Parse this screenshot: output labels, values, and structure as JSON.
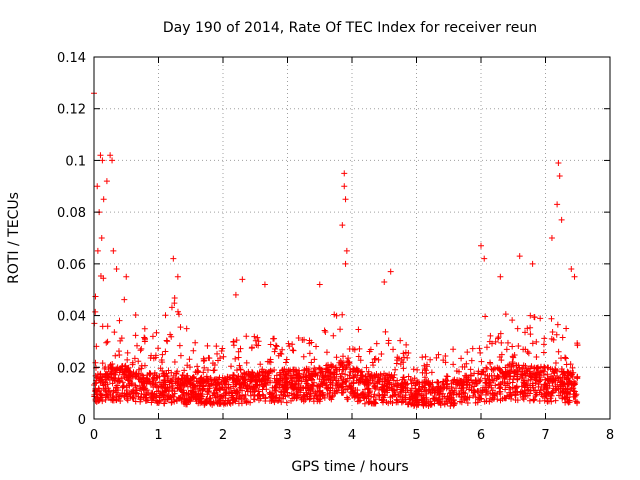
{
  "chart_data": {
    "type": "scatter",
    "title": "Day 190 of 2014, Rate Of TEC Index for receiver reun",
    "xlabel": "GPS time / hours",
    "ylabel": "ROTI / TECUs",
    "xlim": [
      0,
      8
    ],
    "ylim": [
      0,
      0.14
    ],
    "xticks": [
      0,
      1,
      2,
      3,
      4,
      5,
      6,
      7,
      8
    ],
    "xtick_labels": [
      "0",
      "1",
      "2",
      "3",
      "4",
      "5",
      "6",
      "7",
      "8"
    ],
    "yticks": [
      0,
      0.02,
      0.04,
      0.06,
      0.08,
      0.1,
      0.12,
      0.14
    ],
    "ytick_labels": [
      "0",
      "0.02",
      "0.04",
      "0.06",
      "0.08",
      "0.1",
      "0.12",
      "0.14"
    ],
    "grid": true,
    "marker": "plus",
    "color": "#ff0000",
    "x_extent": [
      0,
      7.5
    ],
    "notable_points": [
      {
        "x": 0.0,
        "y": 0.126
      },
      {
        "x": 0.1,
        "y": 0.102
      },
      {
        "x": 0.13,
        "y": 0.1
      },
      {
        "x": 0.25,
        "y": 0.102
      },
      {
        "x": 0.28,
        "y": 0.1
      },
      {
        "x": 0.2,
        "y": 0.092
      },
      {
        "x": 0.05,
        "y": 0.09
      },
      {
        "x": 0.15,
        "y": 0.085
      },
      {
        "x": 0.08,
        "y": 0.08
      },
      {
        "x": 0.12,
        "y": 0.07
      },
      {
        "x": 0.06,
        "y": 0.065
      },
      {
        "x": 0.3,
        "y": 0.065
      },
      {
        "x": 0.35,
        "y": 0.058
      },
      {
        "x": 0.5,
        "y": 0.055
      },
      {
        "x": 1.23,
        "y": 0.062
      },
      {
        "x": 1.3,
        "y": 0.055
      },
      {
        "x": 2.3,
        "y": 0.054
      },
      {
        "x": 2.65,
        "y": 0.052
      },
      {
        "x": 2.2,
        "y": 0.048
      },
      {
        "x": 3.5,
        "y": 0.052
      },
      {
        "x": 3.88,
        "y": 0.095
      },
      {
        "x": 3.88,
        "y": 0.09
      },
      {
        "x": 3.9,
        "y": 0.085
      },
      {
        "x": 3.85,
        "y": 0.075
      },
      {
        "x": 3.92,
        "y": 0.065
      },
      {
        "x": 3.9,
        "y": 0.06
      },
      {
        "x": 4.6,
        "y": 0.057
      },
      {
        "x": 4.5,
        "y": 0.053
      },
      {
        "x": 6.0,
        "y": 0.067
      },
      {
        "x": 6.05,
        "y": 0.062
      },
      {
        "x": 6.3,
        "y": 0.055
      },
      {
        "x": 6.6,
        "y": 0.063
      },
      {
        "x": 6.8,
        "y": 0.06
      },
      {
        "x": 7.2,
        "y": 0.099
      },
      {
        "x": 7.22,
        "y": 0.094
      },
      {
        "x": 7.18,
        "y": 0.083
      },
      {
        "x": 7.25,
        "y": 0.077
      },
      {
        "x": 7.1,
        "y": 0.07
      },
      {
        "x": 7.4,
        "y": 0.058
      },
      {
        "x": 7.45,
        "y": 0.055
      }
    ],
    "series_envelope": [
      {
        "x": 0.0,
        "base": 0.012,
        "high": 0.06
      },
      {
        "x": 0.25,
        "base": 0.016,
        "high": 0.055
      },
      {
        "x": 0.5,
        "base": 0.015,
        "high": 0.045
      },
      {
        "x": 1.0,
        "base": 0.013,
        "high": 0.035
      },
      {
        "x": 1.25,
        "base": 0.014,
        "high": 0.05
      },
      {
        "x": 1.5,
        "base": 0.012,
        "high": 0.03
      },
      {
        "x": 2.0,
        "base": 0.012,
        "high": 0.028
      },
      {
        "x": 2.5,
        "base": 0.014,
        "high": 0.035
      },
      {
        "x": 3.0,
        "base": 0.014,
        "high": 0.03
      },
      {
        "x": 3.5,
        "base": 0.015,
        "high": 0.035
      },
      {
        "x": 3.9,
        "base": 0.017,
        "high": 0.045
      },
      {
        "x": 4.2,
        "base": 0.013,
        "high": 0.03
      },
      {
        "x": 4.6,
        "base": 0.013,
        "high": 0.035
      },
      {
        "x": 5.0,
        "base": 0.011,
        "high": 0.025
      },
      {
        "x": 5.5,
        "base": 0.011,
        "high": 0.025
      },
      {
        "x": 6.0,
        "base": 0.014,
        "high": 0.04
      },
      {
        "x": 6.5,
        "base": 0.016,
        "high": 0.042
      },
      {
        "x": 7.0,
        "base": 0.015,
        "high": 0.04
      },
      {
        "x": 7.5,
        "base": 0.013,
        "high": 0.035
      }
    ],
    "random_seed": 190,
    "density_points": 2600
  }
}
